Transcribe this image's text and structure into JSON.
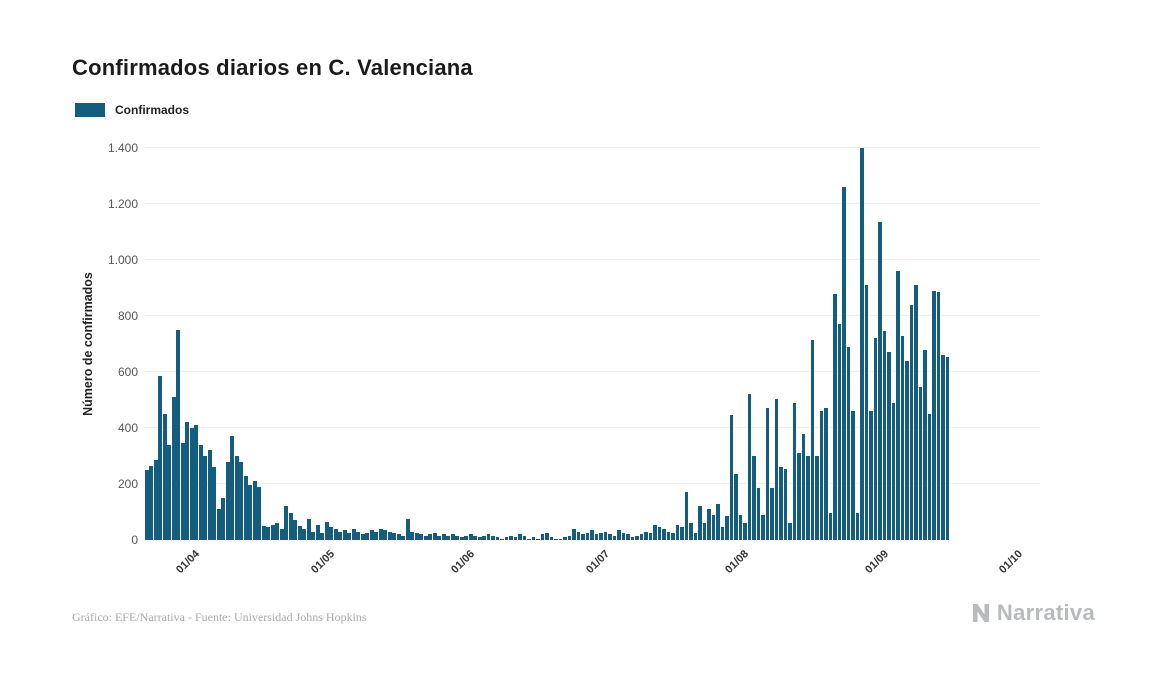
{
  "page": {
    "title": "Confirmados diarios en C. Valenciana",
    "legend": {
      "label": "Confirmados"
    },
    "footer_credit": "Gráfico: EFE/Narrativa - Fuente: Universidad Johns Hopkins",
    "brand": "Narrativa"
  },
  "chart_data": {
    "type": "bar",
    "title": "Confirmados diarios en C. Valenciana",
    "xlabel": "",
    "ylabel": "Número de confirmados",
    "ylim": [
      0,
      1400
    ],
    "grid": true,
    "legend_position": "top-left",
    "bar_color": "#135E7E",
    "yticks": [
      0,
      200,
      400,
      600,
      800,
      1000,
      1200,
      1400
    ],
    "ytick_labels": [
      "0",
      "200",
      "400",
      "600",
      "800",
      "1.000",
      "1.200",
      "1.400"
    ],
    "domain_slots": 199,
    "xticks": [
      {
        "label": "01/04",
        "slot": 10
      },
      {
        "label": "01/05",
        "slot": 40
      },
      {
        "label": "01/06",
        "slot": 71
      },
      {
        "label": "01/07",
        "slot": 101
      },
      {
        "label": "01/08",
        "slot": 132
      },
      {
        "label": "01/09",
        "slot": 163
      },
      {
        "label": "01/10",
        "slot": 193
      }
    ],
    "dates": [
      "22/03",
      "23/03",
      "24/03",
      "25/03",
      "26/03",
      "27/03",
      "28/03",
      "29/03",
      "30/03",
      "31/03",
      "01/04",
      "02/04",
      "03/04",
      "04/04",
      "05/04",
      "06/04",
      "07/04",
      "08/04",
      "09/04",
      "10/04",
      "11/04",
      "12/04",
      "13/04",
      "14/04",
      "15/04",
      "16/04",
      "17/04",
      "18/04",
      "19/04",
      "20/04",
      "21/04",
      "22/04",
      "23/04",
      "24/04",
      "25/04",
      "26/04",
      "27/04",
      "28/04",
      "29/04",
      "30/04",
      "01/05",
      "02/05",
      "03/05",
      "04/05",
      "05/05",
      "06/05",
      "07/05",
      "08/05",
      "09/05",
      "10/05",
      "11/05",
      "12/05",
      "13/05",
      "14/05",
      "15/05",
      "16/05",
      "17/05",
      "18/05",
      "19/05",
      "20/05",
      "21/05",
      "22/05",
      "23/05",
      "24/05",
      "25/05",
      "26/05",
      "27/05",
      "28/05",
      "29/05",
      "30/05",
      "31/05",
      "01/06",
      "02/06",
      "03/06",
      "04/06",
      "05/06",
      "06/06",
      "07/06",
      "08/06",
      "09/06",
      "10/06",
      "11/06",
      "12/06",
      "13/06",
      "14/06",
      "15/06",
      "16/06",
      "17/06",
      "18/06",
      "19/06",
      "20/06",
      "21/06",
      "22/06",
      "23/06",
      "24/06",
      "25/06",
      "26/06",
      "27/06",
      "28/06",
      "29/06",
      "30/06",
      "01/07",
      "02/07",
      "03/07",
      "04/07",
      "05/07",
      "06/07",
      "07/07",
      "08/07",
      "09/07",
      "10/07",
      "11/07",
      "12/07",
      "13/07",
      "14/07",
      "15/07",
      "16/07",
      "17/07",
      "18/07",
      "19/07",
      "20/07",
      "21/07",
      "22/07",
      "23/07",
      "24/07",
      "25/07",
      "26/07",
      "27/07",
      "28/07",
      "29/07",
      "30/07",
      "31/07",
      "01/08",
      "02/08",
      "03/08",
      "04/08",
      "05/08",
      "06/08",
      "07/08",
      "08/08",
      "09/08",
      "10/08",
      "11/08",
      "12/08",
      "13/08",
      "14/08",
      "15/08",
      "16/08",
      "17/08",
      "18/08",
      "19/08",
      "20/08",
      "21/08",
      "22/08",
      "23/08",
      "24/08",
      "25/08",
      "26/08",
      "27/08",
      "28/08",
      "29/08",
      "30/08",
      "31/08",
      "01/09",
      "02/09",
      "03/09",
      "04/09",
      "05/09",
      "06/09",
      "07/09",
      "08/09",
      "09/09",
      "10/09",
      "11/09",
      "12/09",
      "13/09",
      "14/09",
      "15/09",
      "16/09"
    ],
    "values": [
      250,
      265,
      285,
      585,
      450,
      340,
      510,
      750,
      345,
      420,
      400,
      410,
      340,
      300,
      320,
      260,
      110,
      150,
      280,
      370,
      300,
      280,
      230,
      195,
      210,
      190,
      50,
      45,
      55,
      60,
      40,
      120,
      95,
      70,
      50,
      40,
      75,
      30,
      55,
      25,
      65,
      45,
      40,
      30,
      35,
      25,
      40,
      30,
      20,
      25,
      35,
      30,
      40,
      35,
      30,
      25,
      20,
      15,
      75,
      30,
      25,
      20,
      15,
      20,
      25,
      15,
      20,
      15,
      20,
      15,
      10,
      15,
      20,
      15,
      10,
      15,
      20,
      15,
      10,
      5,
      10,
      15,
      10,
      20,
      15,
      5,
      10,
      5,
      20,
      25,
      10,
      5,
      5,
      10,
      15,
      40,
      30,
      20,
      25,
      35,
      20,
      25,
      30,
      20,
      15,
      35,
      25,
      20,
      10,
      15,
      20,
      30,
      25,
      55,
      45,
      40,
      30,
      25,
      55,
      45,
      170,
      60,
      25,
      120,
      60,
      110,
      90,
      130,
      45,
      85,
      445,
      235,
      90,
      60,
      520,
      300,
      185,
      90,
      470,
      185,
      505,
      260,
      255,
      60,
      490,
      310,
      380,
      300,
      715,
      300,
      460,
      470,
      95,
      880,
      770,
      1260,
      690,
      460,
      95,
      1400,
      910,
      460,
      720,
      1135,
      745,
      670,
      490,
      960,
      730,
      640,
      840,
      910,
      545,
      680,
      450,
      890,
      885,
      660,
      655
    ]
  }
}
